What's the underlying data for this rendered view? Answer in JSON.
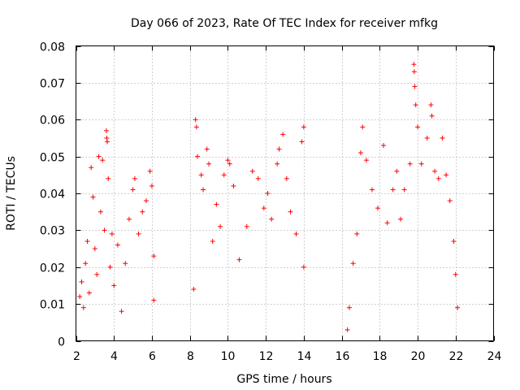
{
  "chart_data": {
    "type": "scatter",
    "title": "Day 066 of 2023, Rate Of TEC Index for receiver mfkg",
    "xlabel": "GPS time / hours",
    "ylabel": "ROTI / TECUs",
    "xlim": [
      2,
      24
    ],
    "ylim": [
      0,
      0.08
    ],
    "x_ticks": [
      2,
      4,
      6,
      8,
      10,
      12,
      14,
      16,
      18,
      20,
      22,
      24
    ],
    "x_tick_labels": [
      "2",
      "4",
      "6",
      "8",
      "10",
      "12",
      "14",
      "16",
      "18",
      "20",
      "22",
      "24"
    ],
    "y_ticks": [
      0,
      0.01,
      0.02,
      0.03,
      0.04,
      0.05,
      0.06,
      0.07,
      0.08
    ],
    "y_tick_labels": [
      "0",
      "0.01",
      "0.02",
      "0.03",
      "0.04",
      "0.05",
      "0.06",
      "0.07",
      "0.08"
    ],
    "grid": true,
    "marker": "+",
    "color": "#ff0000",
    "series": [
      {
        "name": "ROTI",
        "points": [
          [
            2.2,
            0.012
          ],
          [
            2.3,
            0.016
          ],
          [
            2.4,
            0.009
          ],
          [
            2.5,
            0.021
          ],
          [
            2.6,
            0.027
          ],
          [
            2.7,
            0.013
          ],
          [
            2.8,
            0.047
          ],
          [
            2.9,
            0.039
          ],
          [
            3.0,
            0.025
          ],
          [
            3.1,
            0.018
          ],
          [
            3.2,
            0.05
          ],
          [
            3.3,
            0.035
          ],
          [
            3.4,
            0.049
          ],
          [
            3.5,
            0.03
          ],
          [
            3.6,
            0.057
          ],
          [
            3.62,
            0.055
          ],
          [
            3.65,
            0.054
          ],
          [
            3.7,
            0.044
          ],
          [
            3.8,
            0.02
          ],
          [
            3.9,
            0.029
          ],
          [
            4.0,
            0.015
          ],
          [
            4.2,
            0.026
          ],
          [
            4.4,
            0.008
          ],
          [
            4.6,
            0.021
          ],
          [
            4.8,
            0.033
          ],
          [
            5.0,
            0.041
          ],
          [
            5.1,
            0.044
          ],
          [
            5.3,
            0.029
          ],
          [
            5.5,
            0.035
          ],
          [
            5.7,
            0.038
          ],
          [
            5.9,
            0.046
          ],
          [
            6.0,
            0.042
          ],
          [
            6.1,
            0.023
          ],
          [
            6.1,
            0.011
          ],
          [
            8.2,
            0.014
          ],
          [
            8.3,
            0.06
          ],
          [
            8.35,
            0.058
          ],
          [
            8.4,
            0.05
          ],
          [
            8.6,
            0.045
          ],
          [
            8.7,
            0.041
          ],
          [
            8.9,
            0.052
          ],
          [
            9.0,
            0.048
          ],
          [
            9.2,
            0.027
          ],
          [
            9.4,
            0.037
          ],
          [
            9.6,
            0.031
          ],
          [
            9.8,
            0.045
          ],
          [
            10.0,
            0.049
          ],
          [
            10.1,
            0.048
          ],
          [
            10.3,
            0.042
          ],
          [
            10.6,
            0.022
          ],
          [
            11.0,
            0.031
          ],
          [
            11.3,
            0.046
          ],
          [
            11.6,
            0.044
          ],
          [
            11.9,
            0.036
          ],
          [
            12.1,
            0.04
          ],
          [
            12.3,
            0.033
          ],
          [
            12.6,
            0.048
          ],
          [
            12.7,
            0.052
          ],
          [
            12.9,
            0.056
          ],
          [
            13.1,
            0.044
          ],
          [
            13.3,
            0.035
          ],
          [
            13.6,
            0.029
          ],
          [
            13.9,
            0.054
          ],
          [
            14.0,
            0.058
          ],
          [
            14.0,
            0.02
          ],
          [
            16.3,
            0.003
          ],
          [
            16.4,
            0.009
          ],
          [
            16.6,
            0.021
          ],
          [
            16.8,
            0.029
          ],
          [
            17.0,
            0.051
          ],
          [
            17.1,
            0.058
          ],
          [
            17.3,
            0.049
          ],
          [
            17.6,
            0.041
          ],
          [
            17.9,
            0.036
          ],
          [
            18.2,
            0.053
          ],
          [
            18.4,
            0.032
          ],
          [
            18.7,
            0.041
          ],
          [
            18.9,
            0.046
          ],
          [
            19.1,
            0.033
          ],
          [
            19.3,
            0.041
          ],
          [
            19.6,
            0.048
          ],
          [
            19.8,
            0.075
          ],
          [
            19.82,
            0.073
          ],
          [
            19.85,
            0.069
          ],
          [
            19.9,
            0.064
          ],
          [
            20.0,
            0.058
          ],
          [
            20.2,
            0.048
          ],
          [
            20.5,
            0.055
          ],
          [
            20.7,
            0.064
          ],
          [
            20.75,
            0.061
          ],
          [
            20.9,
            0.046
          ],
          [
            21.1,
            0.044
          ],
          [
            21.3,
            0.055
          ],
          [
            21.5,
            0.045
          ],
          [
            21.7,
            0.038
          ],
          [
            21.9,
            0.027
          ],
          [
            22.0,
            0.018
          ],
          [
            22.1,
            0.009
          ]
        ]
      }
    ]
  }
}
